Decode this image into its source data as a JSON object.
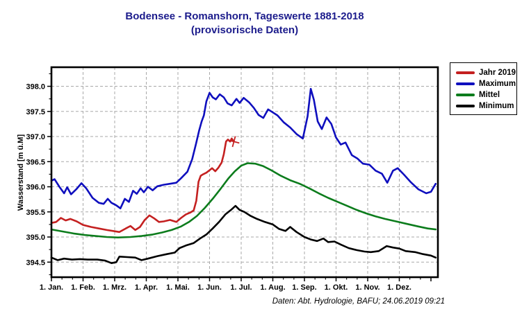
{
  "title": "Bodensee - Romanshorn, Tageswerte 1881-2018",
  "subtitle": "(provisorische Daten)",
  "footer": "Daten: Abt. Hydrologie, BAFU; 24.06.2019 09:21",
  "colors": {
    "title": "#1c1c8c",
    "grid": "#a8a8a8",
    "frame": "#000000",
    "background": "#ffffff",
    "jahr2019": "#c42020",
    "maximum": "#0f0fbe",
    "mittel": "#0c7c1c",
    "minimum": "#000000"
  },
  "chart_data": {
    "type": "line",
    "title": "Bodensee - Romanshorn, Tageswerte 1881-2018",
    "subtitle": "(provisorische Daten)",
    "xlabel": "",
    "ylabel": "Wasserstand [m ü.M]",
    "ylim": [
      394.2,
      398.38
    ],
    "xlim_months": [
      0,
      12.22
    ],
    "yticks": [
      394.5,
      395.0,
      395.5,
      396.0,
      396.5,
      397.0,
      397.5,
      398.0
    ],
    "ytick_labels": [
      "394.5",
      "395.0",
      "395.5",
      "396.0",
      "396.5",
      "397.0",
      "397.5",
      "398.0"
    ],
    "y_minor_step": 0.25,
    "xtick_labels": [
      "1. Jan.",
      "1. Feb.",
      "1. Mrz.",
      "1. Apr.",
      "1. Mai.",
      "1. Jun.",
      "1. Jul.",
      "1. Aug.",
      "1. Sep.",
      "1. Okt.",
      "1. Nov.",
      "1. Dez."
    ],
    "x_minor_per_month": 3,
    "grid": true,
    "legend_position": "top-right-outside",
    "legend_entries": [
      "Jahr 2019",
      "Maximum",
      "Mittel",
      "Minimum"
    ],
    "series": [
      {
        "name": "Jahr 2019",
        "color": "#c42020",
        "end_marker": "plus",
        "points_month_value": [
          [
            0.0,
            395.28
          ],
          [
            0.15,
            395.3
          ],
          [
            0.3,
            395.38
          ],
          [
            0.45,
            395.33
          ],
          [
            0.6,
            395.36
          ],
          [
            0.8,
            395.31
          ],
          [
            1.0,
            395.24
          ],
          [
            1.25,
            395.2
          ],
          [
            1.5,
            395.17
          ],
          [
            1.75,
            395.14
          ],
          [
            1.95,
            395.12
          ],
          [
            2.15,
            395.1
          ],
          [
            2.35,
            395.17
          ],
          [
            2.5,
            395.22
          ],
          [
            2.65,
            395.14
          ],
          [
            2.8,
            395.2
          ],
          [
            2.95,
            395.34
          ],
          [
            3.1,
            395.43
          ],
          [
            3.25,
            395.37
          ],
          [
            3.4,
            395.3
          ],
          [
            3.55,
            395.31
          ],
          [
            3.75,
            395.34
          ],
          [
            3.95,
            395.3
          ],
          [
            4.1,
            395.38
          ],
          [
            4.25,
            395.45
          ],
          [
            4.4,
            395.49
          ],
          [
            4.5,
            395.53
          ],
          [
            4.58,
            395.72
          ],
          [
            4.65,
            396.1
          ],
          [
            4.72,
            396.22
          ],
          [
            4.8,
            396.25
          ],
          [
            4.9,
            396.28
          ],
          [
            5.0,
            396.33
          ],
          [
            5.08,
            396.37
          ],
          [
            5.18,
            396.31
          ],
          [
            5.28,
            396.38
          ],
          [
            5.38,
            396.48
          ],
          [
            5.45,
            396.65
          ],
          [
            5.52,
            396.9
          ],
          [
            5.58,
            396.94
          ],
          [
            5.65,
            396.9
          ],
          [
            5.7,
            396.96
          ],
          [
            5.77,
            396.9
          ]
        ]
      },
      {
        "name": "Maximum",
        "color": "#0f0fbe",
        "end_marker": null,
        "points_month_value": [
          [
            0.0,
            396.12
          ],
          [
            0.1,
            396.15
          ],
          [
            0.25,
            396.0
          ],
          [
            0.4,
            395.87
          ],
          [
            0.5,
            395.99
          ],
          [
            0.62,
            395.85
          ],
          [
            0.8,
            395.96
          ],
          [
            0.95,
            396.07
          ],
          [
            1.1,
            395.97
          ],
          [
            1.3,
            395.78
          ],
          [
            1.5,
            395.68
          ],
          [
            1.65,
            395.66
          ],
          [
            1.78,
            395.76
          ],
          [
            1.9,
            395.68
          ],
          [
            2.05,
            395.63
          ],
          [
            2.18,
            395.57
          ],
          [
            2.32,
            395.76
          ],
          [
            2.45,
            395.7
          ],
          [
            2.58,
            395.92
          ],
          [
            2.7,
            395.86
          ],
          [
            2.82,
            395.97
          ],
          [
            2.92,
            395.89
          ],
          [
            3.05,
            396.0
          ],
          [
            3.2,
            395.93
          ],
          [
            3.35,
            396.01
          ],
          [
            3.55,
            396.04
          ],
          [
            3.75,
            396.06
          ],
          [
            3.95,
            396.08
          ],
          [
            4.1,
            396.17
          ],
          [
            4.3,
            396.3
          ],
          [
            4.45,
            396.55
          ],
          [
            4.57,
            396.85
          ],
          [
            4.67,
            397.12
          ],
          [
            4.75,
            397.3
          ],
          [
            4.82,
            397.42
          ],
          [
            4.9,
            397.7
          ],
          [
            5.0,
            397.87
          ],
          [
            5.1,
            397.78
          ],
          [
            5.2,
            397.74
          ],
          [
            5.32,
            397.84
          ],
          [
            5.45,
            397.78
          ],
          [
            5.57,
            397.66
          ],
          [
            5.7,
            397.62
          ],
          [
            5.85,
            397.75
          ],
          [
            5.95,
            397.67
          ],
          [
            6.08,
            397.77
          ],
          [
            6.25,
            397.68
          ],
          [
            6.4,
            397.57
          ],
          [
            6.55,
            397.43
          ],
          [
            6.7,
            397.37
          ],
          [
            6.85,
            397.54
          ],
          [
            7.0,
            397.48
          ],
          [
            7.15,
            397.42
          ],
          [
            7.35,
            397.28
          ],
          [
            7.55,
            397.18
          ],
          [
            7.75,
            397.05
          ],
          [
            7.95,
            396.96
          ],
          [
            8.1,
            397.4
          ],
          [
            8.2,
            397.95
          ],
          [
            8.3,
            397.73
          ],
          [
            8.42,
            397.3
          ],
          [
            8.55,
            397.15
          ],
          [
            8.7,
            397.38
          ],
          [
            8.85,
            397.25
          ],
          [
            9.0,
            396.98
          ],
          [
            9.15,
            396.84
          ],
          [
            9.3,
            396.88
          ],
          [
            9.5,
            396.63
          ],
          [
            9.68,
            396.56
          ],
          [
            9.85,
            396.46
          ],
          [
            10.05,
            396.44
          ],
          [
            10.25,
            396.32
          ],
          [
            10.45,
            396.26
          ],
          [
            10.62,
            396.08
          ],
          [
            10.8,
            396.32
          ],
          [
            10.95,
            396.37
          ],
          [
            11.15,
            396.24
          ],
          [
            11.35,
            396.1
          ],
          [
            11.6,
            395.95
          ],
          [
            11.85,
            395.87
          ],
          [
            12.0,
            395.9
          ],
          [
            12.15,
            396.06
          ]
        ]
      },
      {
        "name": "Mittel",
        "color": "#0c7c1c",
        "end_marker": null,
        "points_month_value": [
          [
            0.0,
            395.15
          ],
          [
            0.35,
            395.11
          ],
          [
            0.7,
            395.07
          ],
          [
            1.05,
            395.04
          ],
          [
            1.4,
            395.02
          ],
          [
            1.75,
            395.0
          ],
          [
            2.1,
            394.99
          ],
          [
            2.5,
            395.0
          ],
          [
            2.85,
            395.02
          ],
          [
            3.2,
            395.05
          ],
          [
            3.5,
            395.09
          ],
          [
            3.8,
            395.14
          ],
          [
            4.1,
            395.21
          ],
          [
            4.35,
            395.3
          ],
          [
            4.6,
            395.42
          ],
          [
            4.85,
            395.58
          ],
          [
            5.1,
            395.76
          ],
          [
            5.35,
            395.96
          ],
          [
            5.6,
            396.17
          ],
          [
            5.8,
            396.31
          ],
          [
            6.0,
            396.42
          ],
          [
            6.2,
            396.47
          ],
          [
            6.45,
            396.46
          ],
          [
            6.7,
            396.41
          ],
          [
            6.95,
            396.33
          ],
          [
            7.25,
            396.22
          ],
          [
            7.55,
            396.13
          ],
          [
            7.85,
            396.06
          ],
          [
            8.15,
            395.97
          ],
          [
            8.45,
            395.87
          ],
          [
            8.75,
            395.78
          ],
          [
            9.05,
            395.7
          ],
          [
            9.35,
            395.62
          ],
          [
            9.65,
            395.54
          ],
          [
            9.95,
            395.47
          ],
          [
            10.25,
            395.41
          ],
          [
            10.55,
            395.36
          ],
          [
            10.9,
            395.31
          ],
          [
            11.25,
            395.26
          ],
          [
            11.6,
            395.21
          ],
          [
            11.9,
            395.17
          ],
          [
            12.15,
            395.15
          ]
        ]
      },
      {
        "name": "Minimum",
        "color": "#000000",
        "end_marker": null,
        "points_month_value": [
          [
            0.0,
            394.59
          ],
          [
            0.2,
            394.54
          ],
          [
            0.4,
            394.57
          ],
          [
            0.65,
            394.55
          ],
          [
            0.9,
            394.56
          ],
          [
            1.15,
            394.55
          ],
          [
            1.45,
            394.55
          ],
          [
            1.7,
            394.53
          ],
          [
            1.9,
            394.48
          ],
          [
            2.05,
            394.5
          ],
          [
            2.15,
            394.61
          ],
          [
            2.4,
            394.6
          ],
          [
            2.65,
            394.59
          ],
          [
            2.85,
            394.54
          ],
          [
            3.05,
            394.57
          ],
          [
            3.35,
            394.62
          ],
          [
            3.65,
            394.66
          ],
          [
            3.9,
            394.69
          ],
          [
            4.05,
            394.78
          ],
          [
            4.25,
            394.83
          ],
          [
            4.5,
            394.88
          ],
          [
            4.7,
            394.97
          ],
          [
            4.9,
            395.05
          ],
          [
            5.1,
            395.17
          ],
          [
            5.3,
            395.3
          ],
          [
            5.5,
            395.45
          ],
          [
            5.7,
            395.55
          ],
          [
            5.82,
            395.62
          ],
          [
            5.95,
            395.54
          ],
          [
            6.1,
            395.5
          ],
          [
            6.3,
            395.42
          ],
          [
            6.5,
            395.36
          ],
          [
            6.75,
            395.3
          ],
          [
            7.0,
            395.25
          ],
          [
            7.2,
            395.16
          ],
          [
            7.4,
            395.12
          ],
          [
            7.55,
            395.2
          ],
          [
            7.75,
            395.1
          ],
          [
            8.0,
            395.0
          ],
          [
            8.2,
            394.95
          ],
          [
            8.4,
            394.92
          ],
          [
            8.6,
            394.97
          ],
          [
            8.75,
            394.9
          ],
          [
            8.95,
            394.91
          ],
          [
            9.15,
            394.85
          ],
          [
            9.4,
            394.78
          ],
          [
            9.65,
            394.74
          ],
          [
            9.9,
            394.71
          ],
          [
            10.1,
            394.7
          ],
          [
            10.35,
            394.72
          ],
          [
            10.6,
            394.82
          ],
          [
            10.8,
            394.79
          ],
          [
            11.0,
            394.77
          ],
          [
            11.2,
            394.72
          ],
          [
            11.5,
            394.7
          ],
          [
            11.75,
            394.66
          ],
          [
            12.0,
            394.63
          ],
          [
            12.15,
            394.59
          ]
        ]
      }
    ]
  }
}
